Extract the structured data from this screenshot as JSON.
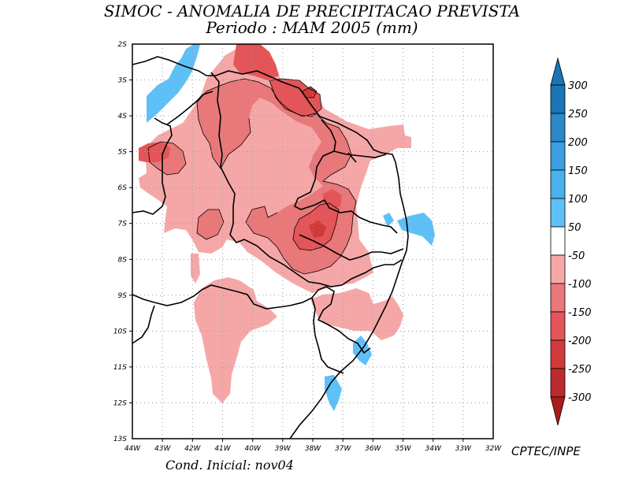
{
  "title": {
    "line1": "SIMOC -  ANOMALIA DE PRECIPITACAO PREVISTA",
    "line2": "Periodo : MAM 2005 (mm)"
  },
  "axes": {
    "lon_labels": [
      "44W",
      "43W",
      "42W",
      "41W",
      "40W",
      "39W",
      "38W",
      "37W",
      "36W",
      "35W",
      "34W",
      "33W",
      "32W"
    ],
    "lat_labels": [
      "2S",
      "3S",
      "4S",
      "5S",
      "6S",
      "7S",
      "8S",
      "9S",
      "10S",
      "11S",
      "12S",
      "13S"
    ]
  },
  "colorbar": {
    "labels": [
      "300",
      "250",
      "200",
      "150",
      "100",
      "50",
      "-50",
      "-100",
      "-150",
      "-200",
      "-250",
      "-300"
    ],
    "colors": [
      "#1a74b5",
      "#2b88c9",
      "#3a9ee0",
      "#4ab0ee",
      "#5ec0f7",
      "#ffffff",
      "#f5a7a7",
      "#e8787a",
      "#e35558",
      "#cf3b3b",
      "#bb2b2b",
      "#a81c1c"
    ]
  },
  "credit": "CPTEC/INPE",
  "cond_inicial": "Cond. Inicial: nov04",
  "map_data": {
    "type": "map",
    "region": "Nordeste do Brasil",
    "lon_range": [
      -44,
      -32
    ],
    "lat_range": [
      -13,
      -2
    ],
    "units": "mm",
    "variable": "anomalia de precipitacao prevista",
    "period": "MAM 2005"
  }
}
